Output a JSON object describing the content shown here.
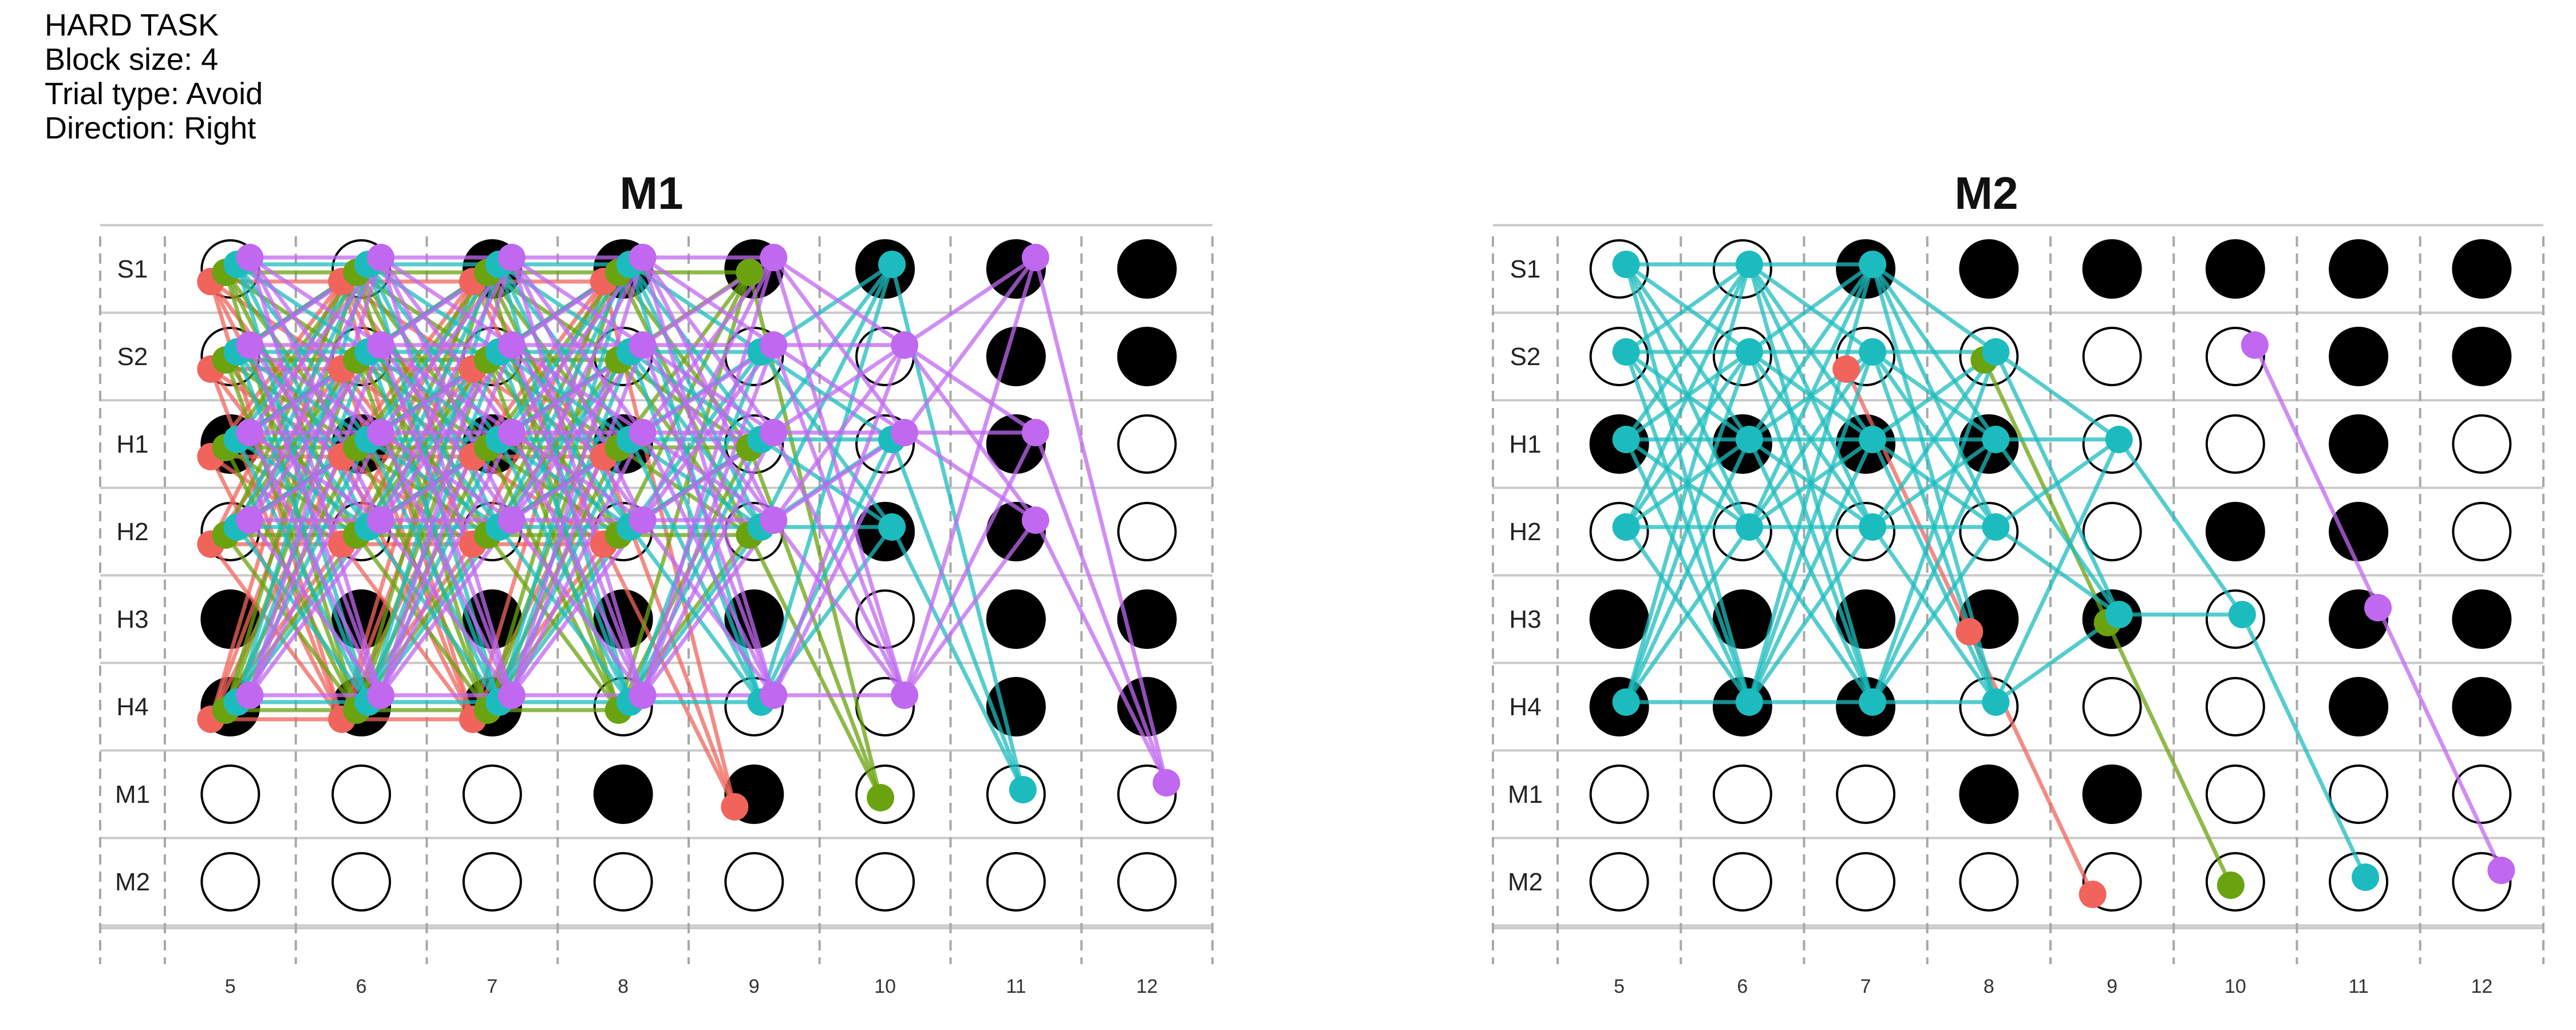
{
  "header": {
    "line1": "HARD TASK",
    "line2": "Block size: 4",
    "line3": "Trial type: Avoid",
    "line4": "Direction: Right"
  },
  "chart_data": {
    "type": "scatter",
    "rows": [
      "S1",
      "S2",
      "H1",
      "H2",
      "H3",
      "H4",
      "M1",
      "M2"
    ],
    "columns": [
      5,
      6,
      7,
      8,
      9,
      10,
      11,
      12
    ],
    "colors": {
      "occupied": "#000000",
      "series": {
        "red": "#f0645c",
        "green": "#6aa30f",
        "cyan": "#1cbcbe",
        "purple": "#c068f0"
      }
    },
    "panels": [
      {
        "title": "M1",
        "filled": [
          [
            "S1",
            7
          ],
          [
            "S1",
            8
          ],
          [
            "S1",
            9
          ],
          [
            "S1",
            10
          ],
          [
            "S1",
            11
          ],
          [
            "S1",
            12
          ],
          [
            "S2",
            11
          ],
          [
            "S2",
            12
          ],
          [
            "H1",
            5
          ],
          [
            "H1",
            6
          ],
          [
            "H1",
            7
          ],
          [
            "H1",
            8
          ],
          [
            "H1",
            11
          ],
          [
            "H2",
            10
          ],
          [
            "H2",
            11
          ],
          [
            "H3",
            5
          ],
          [
            "H3",
            6
          ],
          [
            "H3",
            7
          ],
          [
            "H3",
            8
          ],
          [
            "H3",
            9
          ],
          [
            "H3",
            11
          ],
          [
            "H3",
            12
          ],
          [
            "H4",
            5
          ],
          [
            "H4",
            6
          ],
          [
            "H4",
            7
          ],
          [
            "H4",
            11
          ],
          [
            "H4",
            12
          ],
          [
            "M1",
            8
          ],
          [
            "M1",
            9
          ]
        ],
        "points": {
          "red": [
            [
              "S1",
              5
            ],
            [
              "S2",
              5
            ],
            [
              "H1",
              5
            ],
            [
              "H2",
              5
            ],
            [
              "H4",
              5
            ],
            [
              "S1",
              6
            ],
            [
              "S2",
              6
            ],
            [
              "H1",
              6
            ],
            [
              "H2",
              6
            ],
            [
              "H4",
              6
            ],
            [
              "S1",
              7
            ],
            [
              "S2",
              7
            ],
            [
              "H1",
              7
            ],
            [
              "H2",
              7
            ],
            [
              "H4",
              7
            ],
            [
              "S1",
              8
            ],
            [
              "H1",
              8
            ],
            [
              "H2",
              8
            ],
            [
              "M1",
              9
            ]
          ],
          "green": [
            [
              "S1",
              5
            ],
            [
              "S2",
              5
            ],
            [
              "H1",
              5
            ],
            [
              "H2",
              5
            ],
            [
              "H4",
              5
            ],
            [
              "S1",
              6
            ],
            [
              "S2",
              6
            ],
            [
              "H1",
              6
            ],
            [
              "H2",
              6
            ],
            [
              "H4",
              6
            ],
            [
              "S1",
              7
            ],
            [
              "S2",
              7
            ],
            [
              "H1",
              7
            ],
            [
              "H2",
              7
            ],
            [
              "H4",
              7
            ],
            [
              "S1",
              8
            ],
            [
              "S2",
              8
            ],
            [
              "H1",
              8
            ],
            [
              "H2",
              8
            ],
            [
              "H4",
              8
            ],
            [
              "S1",
              9
            ],
            [
              "H1",
              9
            ],
            [
              "H2",
              9
            ],
            [
              "M1",
              10
            ]
          ],
          "cyan": [
            [
              "S1",
              5
            ],
            [
              "S2",
              5
            ],
            [
              "H1",
              5
            ],
            [
              "H2",
              5
            ],
            [
              "H4",
              5
            ],
            [
              "S1",
              6
            ],
            [
              "S2",
              6
            ],
            [
              "H1",
              6
            ],
            [
              "H2",
              6
            ],
            [
              "H4",
              6
            ],
            [
              "S1",
              7
            ],
            [
              "S2",
              7
            ],
            [
              "H1",
              7
            ],
            [
              "H2",
              7
            ],
            [
              "H4",
              7
            ],
            [
              "S1",
              8
            ],
            [
              "S2",
              8
            ],
            [
              "H1",
              8
            ],
            [
              "H2",
              8
            ],
            [
              "H4",
              8
            ],
            [
              "S2",
              9
            ],
            [
              "H1",
              9
            ],
            [
              "H2",
              9
            ],
            [
              "H4",
              9
            ],
            [
              "S1",
              10
            ],
            [
              "H1",
              10
            ],
            [
              "H2",
              10
            ],
            [
              "M1",
              11
            ]
          ],
          "purple": [
            [
              "S1",
              5
            ],
            [
              "S2",
              5
            ],
            [
              "H1",
              5
            ],
            [
              "H2",
              5
            ],
            [
              "H4",
              5
            ],
            [
              "S1",
              6
            ],
            [
              "S2",
              6
            ],
            [
              "H1",
              6
            ],
            [
              "H2",
              6
            ],
            [
              "H4",
              6
            ],
            [
              "S1",
              7
            ],
            [
              "S2",
              7
            ],
            [
              "H1",
              7
            ],
            [
              "H2",
              7
            ],
            [
              "H4",
              7
            ],
            [
              "S1",
              8
            ],
            [
              "S2",
              8
            ],
            [
              "H1",
              8
            ],
            [
              "H2",
              8
            ],
            [
              "H4",
              8
            ],
            [
              "S1",
              9
            ],
            [
              "S2",
              9
            ],
            [
              "H1",
              9
            ],
            [
              "H2",
              9
            ],
            [
              "H4",
              9
            ],
            [
              "S2",
              10
            ],
            [
              "H1",
              10
            ],
            [
              "H4",
              10
            ],
            [
              "S1",
              11
            ],
            [
              "H1",
              11
            ],
            [
              "H2",
              11
            ],
            [
              "M1",
              12
            ]
          ]
        }
      },
      {
        "title": "M2",
        "filled": [
          [
            "S1",
            7
          ],
          [
            "S1",
            8
          ],
          [
            "S1",
            9
          ],
          [
            "S1",
            10
          ],
          [
            "S1",
            11
          ],
          [
            "S1",
            12
          ],
          [
            "S2",
            11
          ],
          [
            "S2",
            12
          ],
          [
            "H1",
            5
          ],
          [
            "H1",
            6
          ],
          [
            "H1",
            7
          ],
          [
            "H1",
            8
          ],
          [
            "H1",
            11
          ],
          [
            "H2",
            10
          ],
          [
            "H2",
            11
          ],
          [
            "H3",
            5
          ],
          [
            "H3",
            6
          ],
          [
            "H3",
            7
          ],
          [
            "H3",
            8
          ],
          [
            "H3",
            9
          ],
          [
            "H3",
            11
          ],
          [
            "H3",
            12
          ],
          [
            "H4",
            5
          ],
          [
            "H4",
            6
          ],
          [
            "H4",
            7
          ],
          [
            "H4",
            11
          ],
          [
            "H4",
            12
          ],
          [
            "M1",
            8
          ],
          [
            "M1",
            9
          ]
        ],
        "points": {
          "red": [
            [
              "S2",
              7
            ],
            [
              "H3",
              8
            ],
            [
              "M2",
              9
            ]
          ],
          "green": [
            [
              "S2",
              8
            ],
            [
              "H3",
              9
            ],
            [
              "M2",
              10
            ]
          ],
          "cyan": [
            [
              "S1",
              5
            ],
            [
              "S2",
              5
            ],
            [
              "H1",
              5
            ],
            [
              "H2",
              5
            ],
            [
              "H4",
              5
            ],
            [
              "S1",
              6
            ],
            [
              "S2",
              6
            ],
            [
              "H1",
              6
            ],
            [
              "H2",
              6
            ],
            [
              "H4",
              6
            ],
            [
              "S1",
              7
            ],
            [
              "S2",
              7
            ],
            [
              "H1",
              7
            ],
            [
              "H2",
              7
            ],
            [
              "H4",
              7
            ],
            [
              "S2",
              8
            ],
            [
              "H1",
              8
            ],
            [
              "H2",
              8
            ],
            [
              "H4",
              8
            ],
            [
              "H1",
              9
            ],
            [
              "H3",
              9
            ],
            [
              "H3",
              10
            ],
            [
              "M2",
              11
            ]
          ],
          "purple": [
            [
              "S2",
              10
            ],
            [
              "H3",
              11
            ],
            [
              "M2",
              12
            ]
          ]
        }
      }
    ]
  }
}
